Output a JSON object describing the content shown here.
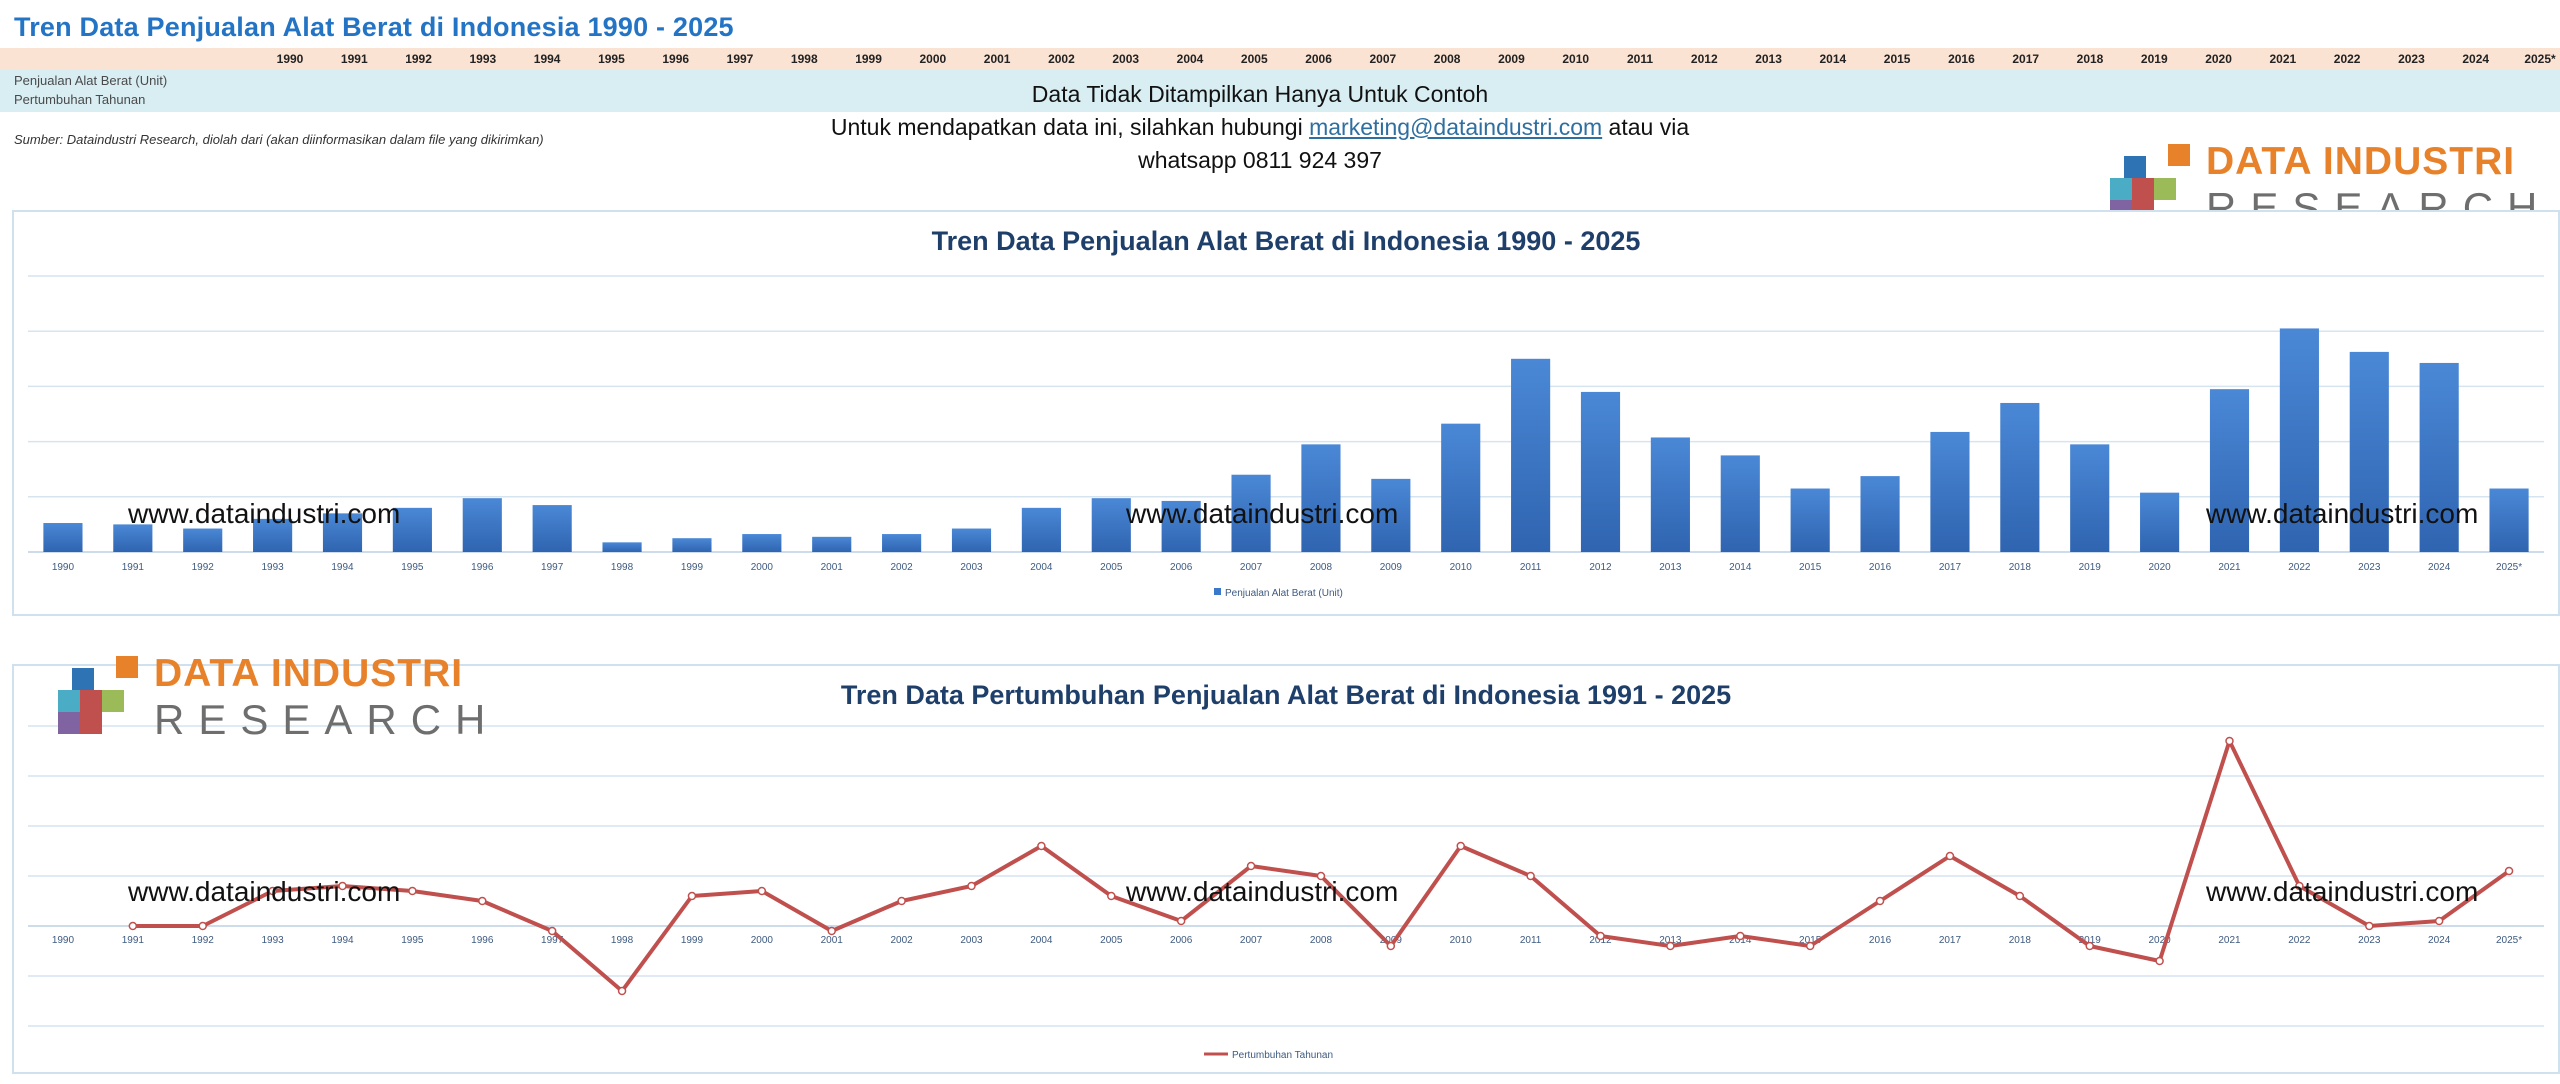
{
  "header": {
    "title": "Tren Data Penjualan Alat Berat di Indonesia 1990 - 2025",
    "years": [
      "1990",
      "1991",
      "1992",
      "1993",
      "1994",
      "1995",
      "1996",
      "1997",
      "1998",
      "1999",
      "2000",
      "2001",
      "2002",
      "2003",
      "2004",
      "2005",
      "2006",
      "2007",
      "2008",
      "2009",
      "2010",
      "2011",
      "2012",
      "2013",
      "2014",
      "2015",
      "2016",
      "2017",
      "2018",
      "2019",
      "2020",
      "2021",
      "2022",
      "2023",
      "2024",
      "2025*"
    ],
    "row_labels": [
      "Penjualan Alat Berat (Unit)",
      "Pertumbuhan Tahunan"
    ],
    "source": "Sumber: Dataindustri Research, diolah dari (akan diinformasikan dalam file yang dikirimkan)"
  },
  "notice": {
    "line1": "Data Tidak Ditampilkan Hanya Untuk Contoh",
    "line2_pre": "Untuk mendapatkan data ini, silahkan hubungi ",
    "email": "marketing@dataindustri.com",
    "line2_post": " atau via",
    "line3": "whatsapp 0811 924 397"
  },
  "logo": {
    "line1": "DATA INDUSTRI",
    "line2": "RESEARCH"
  },
  "watermark": "www.dataindustri.com",
  "colors": {
    "bar": "#3a78c9",
    "line": "#c0504d",
    "title": "#1f3f6b",
    "header_title": "#2474c5",
    "logo_orange": "#e8822a",
    "logo_gray": "#6e6e6e"
  },
  "chart_data": [
    {
      "type": "bar",
      "title": "Tren Data Penjualan Alat Berat di Indonesia 1990 - 2025",
      "categories": [
        "1990",
        "1991",
        "1992",
        "1993",
        "1994",
        "1995",
        "1996",
        "1997",
        "1998",
        "1999",
        "2000",
        "2001",
        "2002",
        "2003",
        "2004",
        "2005",
        "2006",
        "2007",
        "2008",
        "2009",
        "2010",
        "2011",
        "2012",
        "2013",
        "2014",
        "2015",
        "2016",
        "2017",
        "2018",
        "2019",
        "2020",
        "2021",
        "2022",
        "2023",
        "2024",
        "2025*"
      ],
      "series": [
        {
          "name": "Penjualan Alat Berat (Unit)",
          "values": [
            10.5,
            10,
            8.5,
            12,
            14,
            16,
            19.5,
            17,
            3.5,
            5,
            6.5,
            5.5,
            6.5,
            8.5,
            16,
            19.5,
            18.5,
            28,
            39,
            26.5,
            46.5,
            70,
            58,
            41.5,
            35,
            23,
            27.5,
            43.5,
            54,
            39,
            21.5,
            59,
            81,
            72.5,
            68.5,
            23
          ]
        }
      ],
      "ylim": [
        0,
        100
      ],
      "grid": true,
      "legend": "bottom"
    },
    {
      "type": "line",
      "title": "Tren Data Pertumbuhan Penjualan Alat Berat di Indonesia 1991 - 2025",
      "categories": [
        "1990",
        "1991",
        "1992",
        "1993",
        "1994",
        "1995",
        "1996",
        "1997",
        "1998",
        "1999",
        "2000",
        "2001",
        "2002",
        "2003",
        "2004",
        "2005",
        "2006",
        "2007",
        "2008",
        "2009",
        "2010",
        "2011",
        "2012",
        "2013",
        "2014",
        "2015",
        "2016",
        "2017",
        "2018",
        "2019",
        "2020",
        "2021",
        "2022",
        "2023",
        "2024",
        "2025*"
      ],
      "series": [
        {
          "name": "Pertumbuhan Tahunan",
          "values": [
            null,
            0,
            0,
            7,
            8,
            7,
            5,
            -1,
            -13,
            6,
            7,
            -1,
            5,
            8,
            16,
            6,
            1,
            12,
            10,
            -4,
            16,
            10,
            -2,
            -4,
            -2,
            -4,
            5,
            14,
            6,
            -4,
            -7,
            37,
            8,
            0,
            1,
            11
          ]
        }
      ],
      "ylim": [
        -20,
        40
      ],
      "grid": true,
      "legend": "bottom"
    }
  ]
}
